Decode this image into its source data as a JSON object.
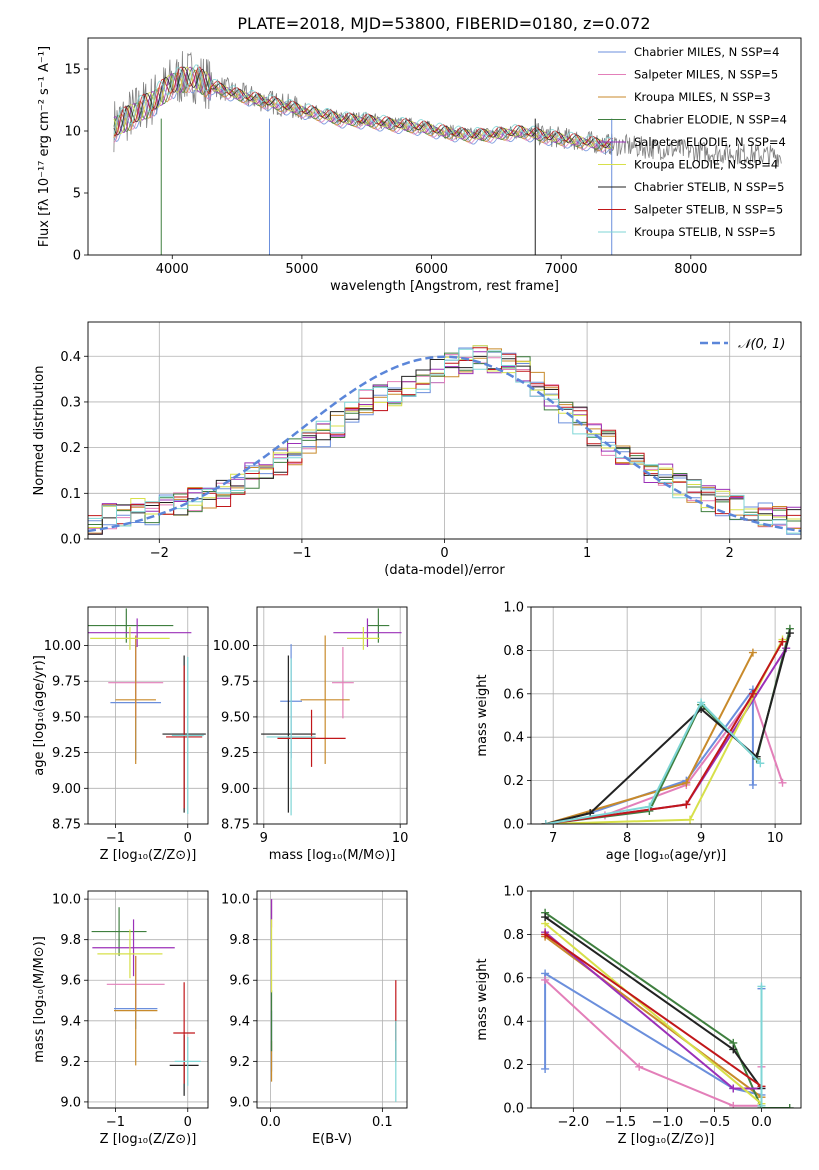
{
  "figure": {
    "title": "PLATE=2018, MJD=53800, FIBERID=0180, z=0.072"
  },
  "series_colors": [
    "#6b8fdc",
    "#e37fb9",
    "#c88a2b",
    "#3f7f3f",
    "#9b30b8",
    "#d7e04a",
    "#222222",
    "#c1171a",
    "#7fd6d6"
  ],
  "chart_data": [
    {
      "id": "spectrum",
      "type": "line",
      "xlabel": "wavelength [Angstrom, rest frame]",
      "ylabel": "Flux [fλ 10⁻¹⁷ erg cm⁻² s⁻¹ A⁻¹]",
      "xlim": [
        3350,
        8850
      ],
      "ylim": [
        0,
        17.5
      ],
      "xticks": [
        "4000",
        "5000",
        "6000",
        "7000",
        "8000"
      ],
      "yticks": [
        "0",
        "5",
        "10",
        "15"
      ],
      "grid": false,
      "legend_position": "top-right",
      "legend": [
        "Chabrier MILES, N_SSP=4",
        "Salpeter MILES, N_SSP=5",
        "Kroupa MILES, N_SSP=3",
        "Chabrier ELODIE, N_SSP=4",
        "Salpeter ELODIE, N_SSP=4",
        "Kroupa ELODIE, N_SSP=4",
        "Chabrier STELIB, N_SSP=5",
        "Salpeter STELIB, N_SSP=5",
        "Kroupa STELIB, N_SSP=5"
      ],
      "data_continuum": {
        "x": [
          3550,
          3700,
          3850,
          4000,
          4150,
          4300,
          4500,
          4700,
          4900,
          5100,
          5300,
          5500,
          5700,
          5900,
          6100,
          6300,
          6500,
          6700,
          6900,
          7100,
          7300,
          7500,
          7700,
          7900,
          8100,
          8300,
          8500,
          8700
        ],
        "y": [
          10.5,
          11.5,
          12.5,
          14.0,
          14.5,
          13.8,
          13.0,
          12.5,
          12.0,
          11.5,
          11.0,
          11.0,
          10.6,
          10.4,
          10.0,
          9.7,
          9.8,
          10.0,
          9.6,
          9.3,
          9.0,
          8.8,
          8.6,
          8.5,
          8.3,
          8.2,
          8.1,
          8.0
        ]
      },
      "model_continuum": {
        "x": [
          3550,
          3700,
          3850,
          4000,
          4150,
          4300,
          4500,
          4700,
          4900,
          5100,
          5300,
          5500,
          5700,
          5900,
          6100,
          6300,
          6500,
          6700,
          6900,
          7100,
          7300,
          7400
        ],
        "y": [
          10.2,
          11.3,
          12.3,
          13.8,
          14.3,
          13.6,
          12.9,
          12.4,
          11.9,
          11.4,
          10.9,
          10.8,
          10.5,
          10.3,
          9.9,
          9.6,
          9.7,
          9.9,
          9.5,
          9.2,
          8.9,
          8.8
        ]
      }
    },
    {
      "id": "residuals",
      "type": "step",
      "xlabel": "(data-model)/error",
      "ylabel": "Normed distribution",
      "xlim": [
        -2.5,
        2.5
      ],
      "ylim": [
        0,
        0.475
      ],
      "xticks": [
        "−2",
        "−1",
        "0",
        "1",
        "2"
      ],
      "yticks": [
        "0.0",
        "0.1",
        "0.2",
        "0.3",
        "0.4"
      ],
      "grid": true,
      "legend_position": "top-right",
      "legend": [
        "𝒩(0, 1)"
      ],
      "bin_width": 0.1,
      "hist_values": [
        0.04,
        0.05,
        0.05,
        0.06,
        0.06,
        0.08,
        0.08,
        0.09,
        0.09,
        0.1,
        0.12,
        0.14,
        0.15,
        0.17,
        0.19,
        0.21,
        0.23,
        0.25,
        0.28,
        0.3,
        0.31,
        0.32,
        0.33,
        0.35,
        0.37,
        0.38,
        0.39,
        0.4,
        0.39,
        0.38,
        0.37,
        0.34,
        0.31,
        0.28,
        0.26,
        0.23,
        0.21,
        0.19,
        0.17,
        0.15,
        0.14,
        0.12,
        0.1,
        0.09,
        0.08,
        0.07,
        0.06,
        0.05,
        0.05,
        0.04
      ]
    },
    {
      "id": "z-age",
      "type": "scatter",
      "xlabel": "Z [log₁₀(Z/Z⊙)]",
      "ylabel": "age  [log₁₀(age/yr)]",
      "xlim": [
        -1.38,
        0.28
      ],
      "ylim": [
        8.75,
        10.27
      ],
      "xticks": [
        "−1",
        "0"
      ],
      "yticks": [
        "8.75",
        "9.00",
        "9.25",
        "9.50",
        "9.75",
        "10.00"
      ],
      "grid": true,
      "points": [
        {
          "x": -0.72,
          "y": 9.6,
          "xerr": 0.35,
          "yerr": 0.4
        },
        {
          "x": -0.72,
          "y": 9.74,
          "xerr": 0.38,
          "yerr": 0.25
        },
        {
          "x": -0.72,
          "y": 9.62,
          "xerr": 0.28,
          "yerr": 0.45
        },
        {
          "x": -0.85,
          "y": 10.14,
          "xerr": 0.65,
          "yerr": 0.12
        },
        {
          "x": -0.7,
          "y": 10.09,
          "xerr": 0.75,
          "yerr": 0.1
        },
        {
          "x": -0.8,
          "y": 10.05,
          "xerr": 0.55,
          "yerr": 0.08
        },
        {
          "x": -0.05,
          "y": 9.38,
          "xerr": 0.3,
          "yerr": 0.55
        },
        {
          "x": -0.05,
          "y": 9.36,
          "xerr": 0.25,
          "yerr": 0.5
        },
        {
          "x": 0.0,
          "y": 9.37,
          "xerr": 0.22,
          "yerr": 0.55
        }
      ]
    },
    {
      "id": "mass-age",
      "type": "scatter",
      "xlabel": "mass [log₁₀(M/M⊙)]",
      "ylabel": "",
      "xlim": [
        8.95,
        10.05
      ],
      "ylim": [
        8.75,
        10.27
      ],
      "xticks": [
        "9",
        "10"
      ],
      "yticks": [
        "8.75",
        "9.00",
        "9.25",
        "9.50",
        "9.75",
        "10.00"
      ],
      "grid": true,
      "points": [
        {
          "x": 9.2,
          "y": 9.61,
          "xerr": 0.08,
          "yerr": 0.4
        },
        {
          "x": 9.58,
          "y": 9.74,
          "xerr": 0.08,
          "yerr": 0.25
        },
        {
          "x": 9.45,
          "y": 9.62,
          "xerr": 0.18,
          "yerr": 0.45
        },
        {
          "x": 9.84,
          "y": 10.14,
          "xerr": 0.08,
          "yerr": 0.12
        },
        {
          "x": 9.76,
          "y": 10.09,
          "xerr": 0.25,
          "yerr": 0.1
        },
        {
          "x": 9.73,
          "y": 10.05,
          "xerr": 0.12,
          "yerr": 0.08
        },
        {
          "x": 9.18,
          "y": 9.38,
          "xerr": 0.2,
          "yerr": 0.55
        },
        {
          "x": 9.35,
          "y": 9.35,
          "xerr": 0.25,
          "yerr": 0.2
        },
        {
          "x": 9.2,
          "y": 9.36,
          "xerr": 0.18,
          "yerr": 0.55
        }
      ]
    },
    {
      "id": "age-weight",
      "type": "line",
      "xlabel": "age  [log₁₀(age/yr)]",
      "ylabel": "mass weight",
      "xlim": [
        6.7,
        10.35
      ],
      "ylim": [
        0,
        1.0
      ],
      "xticks": [
        "7",
        "8",
        "9",
        "10"
      ],
      "yticks": [
        "0.0",
        "0.2",
        "0.4",
        "0.6",
        "0.8",
        "1.0"
      ],
      "grid": true,
      "series": [
        {
          "x": [
            6.9,
            7.5,
            8.8,
            9.7,
            9.7
          ],
          "y": [
            0.0,
            0.05,
            0.2,
            0.62,
            0.18
          ]
        },
        {
          "x": [
            6.9,
            7.7,
            8.8,
            9.7,
            10.1
          ],
          "y": [
            0.0,
            0.04,
            0.18,
            0.59,
            0.19
          ]
        },
        {
          "x": [
            6.9,
            8.8,
            9.7
          ],
          "y": [
            0.0,
            0.19,
            0.79
          ]
        },
        {
          "x": [
            6.9,
            8.3,
            9.0,
            9.75,
            10.2
          ],
          "y": [
            0.0,
            0.06,
            0.55,
            0.3,
            0.9
          ]
        },
        {
          "x": [
            6.9,
            8.8,
            10.15
          ],
          "y": [
            0.0,
            0.09,
            0.81
          ]
        },
        {
          "x": [
            6.9,
            8.85,
            10.1
          ],
          "y": [
            0.0,
            0.02,
            0.85
          ]
        },
        {
          "x": [
            6.9,
            7.5,
            9.0,
            9.75,
            10.2
          ],
          "y": [
            0.0,
            0.05,
            0.53,
            0.31,
            0.88
          ]
        },
        {
          "x": [
            6.9,
            8.8,
            9.7,
            10.1
          ],
          "y": [
            0.0,
            0.09,
            0.6,
            0.84
          ]
        },
        {
          "x": [
            6.9,
            8.3,
            9.0,
            9.8
          ],
          "y": [
            0.0,
            0.08,
            0.56,
            0.28
          ]
        }
      ]
    },
    {
      "id": "z-mass",
      "type": "scatter",
      "xlabel": "Z [log₁₀(Z/Z⊙)]",
      "ylabel": "mass [log₁₀(M/M⊙)]",
      "xlim": [
        -1.38,
        0.28
      ],
      "ylim": [
        8.97,
        10.04
      ],
      "xticks": [
        "−1",
        "0"
      ],
      "yticks": [
        "9.0",
        "9.2",
        "9.4",
        "9.6",
        "9.8",
        "10.0"
      ],
      "grid": true,
      "points": [
        {
          "x": -0.72,
          "y": 9.46,
          "xerr": 0.3,
          "yerr": 0.1
        },
        {
          "x": -0.72,
          "y": 9.58,
          "xerr": 0.4,
          "yerr": 0.14
        },
        {
          "x": -0.72,
          "y": 9.45,
          "xerr": 0.3,
          "yerr": 0.27
        },
        {
          "x": -0.95,
          "y": 9.84,
          "xerr": 0.38,
          "yerr": 0.12
        },
        {
          "x": -0.75,
          "y": 9.76,
          "xerr": 0.57,
          "yerr": 0.14
        },
        {
          "x": -0.8,
          "y": 9.73,
          "xerr": 0.45,
          "yerr": 0.12
        },
        {
          "x": -0.05,
          "y": 9.18,
          "xerr": 0.2,
          "yerr": 0.15
        },
        {
          "x": -0.05,
          "y": 9.34,
          "xerr": 0.15,
          "yerr": 0.25
        },
        {
          "x": 0.0,
          "y": 9.2,
          "xerr": 0.18,
          "yerr": 0.12
        }
      ]
    },
    {
      "id": "ebv-mass",
      "type": "scatter",
      "xlabel": "E(B-V)",
      "ylabel": "",
      "xlim": [
        -0.012,
        0.122
      ],
      "ylim": [
        8.97,
        10.04
      ],
      "xticks": [
        "0.0",
        "0.1"
      ],
      "yticks": [
        "9.0",
        "9.2",
        "9.4",
        "9.6",
        "9.8",
        "10.0"
      ],
      "grid": true,
      "points": [
        {
          "x": 0.001,
          "y": 9.3,
          "xerr": 0,
          "yerr": 0.15
        },
        {
          "x": 0.001,
          "y": 9.93,
          "xerr": 0,
          "yerr": 0.07
        },
        {
          "x": 0.001,
          "y": 9.2,
          "xerr": 0,
          "yerr": 0.1
        },
        {
          "x": 0.001,
          "y": 9.4,
          "xerr": 0,
          "yerr": 0.15
        },
        {
          "x": 0.001,
          "y": 9.95,
          "xerr": 0,
          "yerr": 0.05
        },
        {
          "x": 0.001,
          "y": 9.72,
          "xerr": 0,
          "yerr": 0.18
        },
        {
          "x": 0.112,
          "y": 9.3,
          "xerr": 0,
          "yerr": 0.1
        },
        {
          "x": 0.112,
          "y": 9.45,
          "xerr": 0,
          "yerr": 0.15
        },
        {
          "x": 0.112,
          "y": 9.2,
          "xerr": 0,
          "yerr": 0.2
        }
      ]
    },
    {
      "id": "z-weight",
      "type": "line",
      "xlabel": "Z [log₁₀(Z/Z⊙)]",
      "ylabel": "mass weight",
      "xlim": [
        -2.45,
        0.42
      ],
      "ylim": [
        0,
        1.0
      ],
      "xticks": [
        "−2.0",
        "−1.5",
        "−1.0",
        "−0.5",
        "0.0"
      ],
      "yticks": [
        "0.0",
        "0.2",
        "0.4",
        "0.6",
        "0.8",
        "1.0"
      ],
      "grid": true,
      "series": [
        {
          "x": [
            -2.3,
            -2.3,
            -0.3,
            0.0,
            0.0
          ],
          "y": [
            0.18,
            0.62,
            0.09,
            0.06,
            0.55
          ]
        },
        {
          "x": [
            -2.3,
            -1.3,
            -0.3,
            0.0,
            0.0
          ],
          "y": [
            0.59,
            0.19,
            0.01,
            0.01,
            0.19
          ]
        },
        {
          "x": [
            -2.3,
            0.0
          ],
          "y": [
            0.79,
            0.05
          ]
        },
        {
          "x": [
            -2.3,
            -0.3,
            0.0,
            0.3
          ],
          "y": [
            0.9,
            0.3,
            0.0,
            0.0
          ]
        },
        {
          "x": [
            -2.3,
            -0.3,
            0.0
          ],
          "y": [
            0.81,
            0.09,
            0.09
          ]
        },
        {
          "x": [
            -2.3,
            0.0
          ],
          "y": [
            0.85,
            0.02
          ]
        },
        {
          "x": [
            -2.3,
            -0.3,
            0.0
          ],
          "y": [
            0.88,
            0.27,
            0.09
          ]
        },
        {
          "x": [
            -2.3,
            0.0
          ],
          "y": [
            0.8,
            0.1
          ]
        },
        {
          "x": [
            0.0,
            0.0
          ],
          "y": [
            0.56,
            0.01
          ]
        }
      ]
    }
  ]
}
